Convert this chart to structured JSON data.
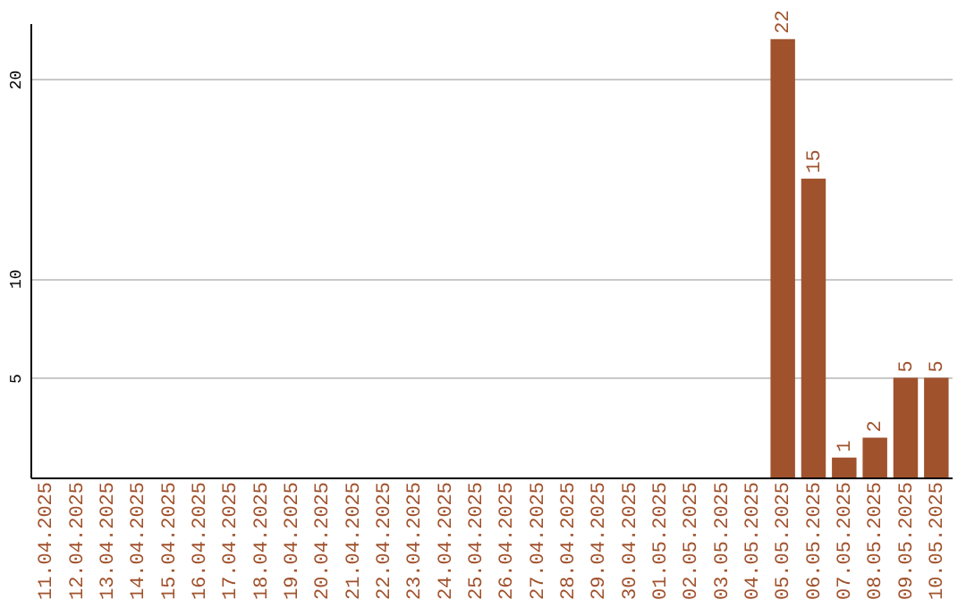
{
  "chart_data": {
    "type": "bar",
    "categories": [
      "11.04.2025",
      "12.04.2025",
      "13.04.2025",
      "14.04.2025",
      "15.04.2025",
      "16.04.2025",
      "17.04.2025",
      "18.04.2025",
      "19.04.2025",
      "20.04.2025",
      "21.04.2025",
      "22.04.2025",
      "23.04.2025",
      "24.04.2025",
      "25.04.2025",
      "26.04.2025",
      "27.04.2025",
      "28.04.2025",
      "29.04.2025",
      "30.04.2025",
      "01.05.2025",
      "02.05.2025",
      "03.05.2025",
      "04.05.2025",
      "05.05.2025",
      "06.05.2025",
      "07.05.2025",
      "08.05.2025",
      "09.05.2025",
      "10.05.2025"
    ],
    "values": [
      0,
      0,
      0,
      0,
      0,
      0,
      0,
      0,
      0,
      0,
      0,
      0,
      0,
      0,
      0,
      0,
      0,
      0,
      0,
      0,
      0,
      0,
      0,
      0,
      22,
      15,
      1,
      2,
      5,
      5
    ],
    "value_labels": [
      null,
      null,
      null,
      null,
      null,
      null,
      null,
      null,
      null,
      null,
      null,
      null,
      null,
      null,
      null,
      null,
      null,
      null,
      null,
      null,
      null,
      null,
      null,
      null,
      "22",
      "15",
      "1",
      "2",
      "5",
      "5"
    ],
    "color": "#a0522d",
    "ylim": [
      0,
      22.8
    ],
    "yticks": [
      5,
      10,
      20
    ],
    "grid": "y"
  }
}
